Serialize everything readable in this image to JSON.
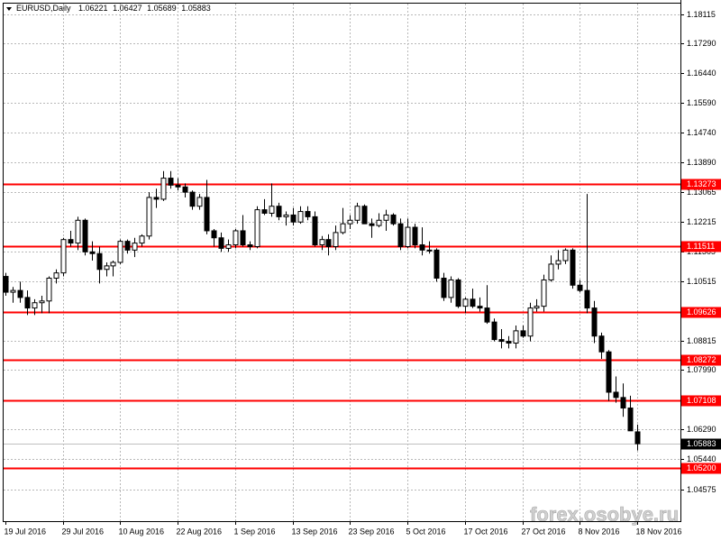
{
  "chart_data": {
    "type": "candlestick",
    "symbol": "EURUSD,Daily",
    "categories": [
      "19 Jul 2016",
      null,
      null,
      null,
      null,
      null,
      null,
      null,
      "29 Jul 2016",
      null,
      null,
      null,
      null,
      null,
      null,
      null,
      "10 Aug 2016",
      null,
      null,
      null,
      null,
      null,
      null,
      null,
      "22 Aug 2016",
      null,
      null,
      null,
      null,
      null,
      null,
      null,
      "1 Sep 2016",
      null,
      null,
      null,
      null,
      null,
      null,
      null,
      "13 Sep 2016",
      null,
      null,
      null,
      null,
      null,
      null,
      null,
      "23 Sep 2016",
      null,
      null,
      null,
      null,
      null,
      null,
      null,
      "5 Oct 2016",
      null,
      null,
      null,
      null,
      null,
      null,
      null,
      "17 Oct 2016",
      null,
      null,
      null,
      null,
      null,
      null,
      null,
      "27 Oct 2016",
      null,
      null,
      null,
      null,
      null,
      null,
      null,
      "8 Nov 2016",
      null,
      null,
      null,
      null,
      null,
      null,
      null,
      "18 Nov 2016"
    ],
    "open": [
      1.1065,
      1.102,
      1.1025,
      1.1005,
      1.0975,
      1.099,
      1.0995,
      1.106,
      1.1075,
      1.117,
      1.116,
      1.1225,
      1.1135,
      1.113,
      1.1085,
      1.1095,
      1.1105,
      1.1165,
      1.114,
      1.116,
      1.118,
      1.129,
      1.1285,
      1.1345,
      1.1325,
      1.132,
      1.1305,
      1.1265,
      1.129,
      1.1195,
      1.1175,
      1.1145,
      1.1155,
      1.1195,
      1.1155,
      1.115,
      1.1255,
      1.1245,
      1.1265,
      1.1235,
      1.124,
      1.122,
      1.125,
      1.1235,
      1.1155,
      1.117,
      1.115,
      1.119,
      1.1215,
      1.1225,
      1.1265,
      1.1215,
      1.121,
      1.1225,
      1.124,
      1.1215,
      1.115,
      1.1205,
      1.1155,
      1.114,
      1.114,
      1.106,
      1.1005,
      1.1055,
      1.098,
      1.1,
      1.098,
      1.0975,
      1.0935,
      1.0885,
      1.088,
      1.0875,
      1.091,
      1.0895,
      1.0975,
      1.098,
      1.1055,
      1.11,
      1.111,
      1.114,
      1.104,
      1.1025,
      1.0975,
      1.0895,
      1.085,
      1.0735,
      1.072,
      1.069,
      1.06221
    ],
    "high": [
      1.1075,
      1.1035,
      1.105,
      1.1025,
      1.1,
      1.101,
      1.1065,
      1.1085,
      1.1175,
      1.1195,
      1.1235,
      1.123,
      1.1165,
      1.115,
      1.1105,
      1.111,
      1.117,
      1.117,
      1.1175,
      1.1185,
      1.1305,
      1.1315,
      1.1365,
      1.1365,
      1.1345,
      1.133,
      1.131,
      1.13,
      1.134,
      1.12,
      1.119,
      1.117,
      1.12,
      1.124,
      1.1165,
      1.1265,
      1.1285,
      1.133,
      1.1275,
      1.125,
      1.126,
      1.1265,
      1.1265,
      1.125,
      1.118,
      1.1185,
      1.121,
      1.126,
      1.124,
      1.1275,
      1.127,
      1.123,
      1.1245,
      1.1255,
      1.1245,
      1.123,
      1.123,
      1.1215,
      1.1205,
      1.1165,
      1.1145,
      1.1075,
      1.1065,
      1.106,
      1.1005,
      1.103,
      1.1005,
      1.104,
      1.0945,
      1.0915,
      1.0895,
      1.0925,
      1.0925,
      1.099,
      1.1,
      1.107,
      1.1125,
      1.114,
      1.1145,
      1.1145,
      1.1055,
      1.13,
      1.0995,
      1.0905,
      1.0855,
      1.078,
      1.076,
      1.0725,
      1.06427
    ],
    "low": [
      1.101,
      1.099,
      1.099,
      1.0955,
      1.0955,
      1.096,
      1.096,
      1.1045,
      1.1065,
      1.115,
      1.114,
      1.1125,
      1.111,
      1.1045,
      1.1065,
      1.1065,
      1.11,
      1.113,
      1.112,
      1.115,
      1.117,
      1.126,
      1.128,
      1.1315,
      1.131,
      1.129,
      1.1255,
      1.1255,
      1.1185,
      1.115,
      1.1135,
      1.1135,
      1.1145,
      1.115,
      1.114,
      1.1145,
      1.124,
      1.1235,
      1.1225,
      1.121,
      1.121,
      1.1215,
      1.1225,
      1.115,
      1.114,
      1.1125,
      1.114,
      1.1185,
      1.12,
      1.1215,
      1.1215,
      1.1175,
      1.1205,
      1.1195,
      1.121,
      1.114,
      1.1145,
      1.1145,
      1.1125,
      1.113,
      1.105,
      1.0995,
      1.099,
      1.0975,
      1.096,
      1.0975,
      1.0965,
      1.093,
      1.088,
      1.086,
      1.086,
      1.086,
      1.089,
      1.088,
      1.0965,
      1.0965,
      1.105,
      1.1085,
      1.11,
      1.103,
      1.102,
      1.096,
      1.0875,
      1.083,
      1.071,
      1.0705,
      1.0665,
      1.0625,
      1.05689
    ],
    "close": [
      1.102,
      1.1025,
      1.1005,
      1.0975,
      1.099,
      1.0995,
      1.106,
      1.1075,
      1.117,
      1.116,
      1.1225,
      1.1135,
      1.113,
      1.1085,
      1.1095,
      1.1105,
      1.1165,
      1.114,
      1.116,
      1.118,
      1.129,
      1.1285,
      1.1345,
      1.1325,
      1.132,
      1.1305,
      1.1265,
      1.129,
      1.1195,
      1.1175,
      1.1145,
      1.1155,
      1.1195,
      1.1155,
      1.115,
      1.1255,
      1.1245,
      1.1265,
      1.1235,
      1.124,
      1.122,
      1.125,
      1.1235,
      1.1155,
      1.117,
      1.115,
      1.119,
      1.1215,
      1.1225,
      1.1265,
      1.1215,
      1.121,
      1.1225,
      1.124,
      1.1215,
      1.115,
      1.1205,
      1.1155,
      1.114,
      1.114,
      1.106,
      1.1005,
      1.1055,
      1.098,
      1.1,
      1.098,
      1.0975,
      1.0935,
      1.0885,
      1.088,
      1.0875,
      1.091,
      1.0895,
      1.0975,
      1.098,
      1.1055,
      1.11,
      1.111,
      1.114,
      1.104,
      1.1025,
      1.0975,
      1.0895,
      1.085,
      1.0735,
      1.072,
      1.069,
      1.0625,
      1.05883
    ],
    "bull_color": "#ffffff",
    "bear_color": "#000000",
    "level_color": "#ff0000",
    "ylim": [
      1.03676,
      1.18449
    ],
    "yticks": [
      1.18115,
      {
        "value": 1.1729,
        "label": "1.17290"
      },
      {
        "value": 1.1644,
        "label": "1.16440"
      },
      {
        "value": 1.1559,
        "label": "1.15590"
      },
      {
        "value": 1.1474,
        "label": "1.14740"
      },
      {
        "value": 1.1389,
        "label": "1.13890"
      },
      1.13065,
      1.12215,
      1.11365,
      1.10515,
      1.08815,
      {
        "value": 1.0799,
        "label": "1.07990"
      },
      {
        "value": 1.0629,
        "label": "1.06290"
      },
      {
        "value": 1.0544,
        "label": "1.05440"
      },
      1.04575
    ],
    "levels": [
      1.13273,
      1.11511,
      1.09626,
      1.08272,
      1.07108,
      {
        "value": 1.052,
        "label": "1.05200"
      }
    ],
    "grid": true,
    "watermark": "forex.osobye.ru"
  }
}
